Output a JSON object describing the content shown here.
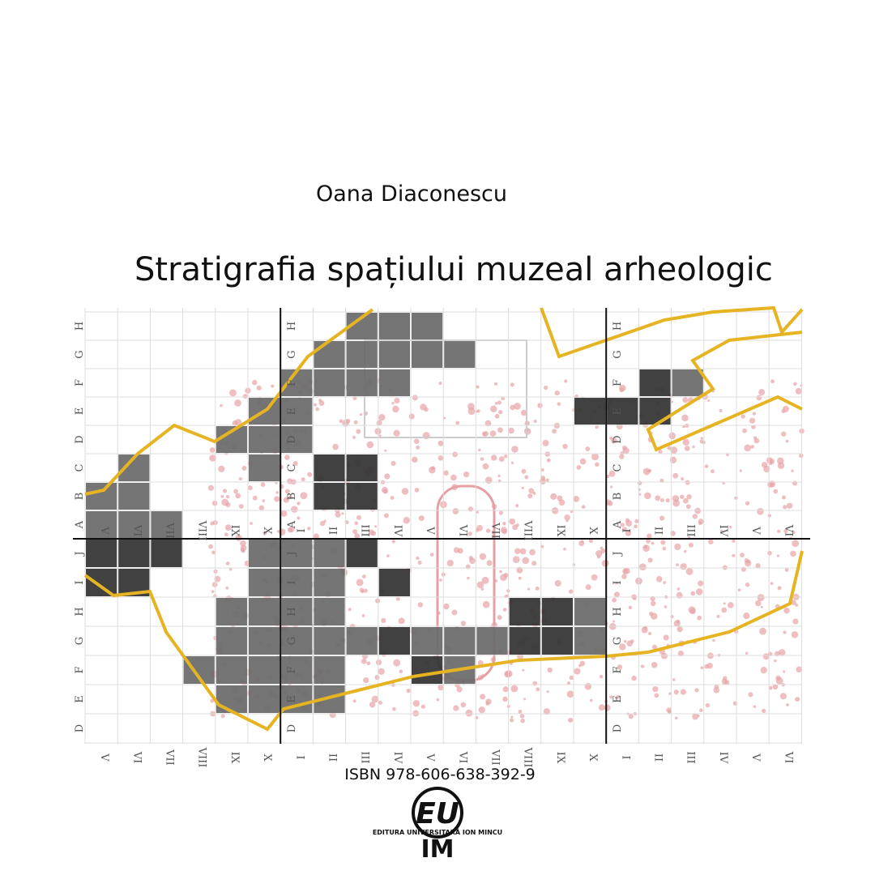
{
  "author": "Oana Diaconescu",
  "title": "Stratigrafia spațiului muzeal arheologic",
  "grid": {
    "columns": [
      "V",
      "VI",
      "VII",
      "VIII",
      "IX",
      "X",
      "I",
      "II",
      "III",
      "IV",
      "V",
      "VI",
      "VII",
      "VIII",
      "IX",
      "X",
      "I",
      "II",
      "III",
      "IV",
      "V",
      "VI"
    ],
    "rows_upper": [
      "A",
      "B",
      "C",
      "D",
      "E",
      "F",
      "G",
      "H"
    ],
    "rows_lower": [
      "J",
      "I",
      "H",
      "G",
      "F",
      "E",
      "D"
    ]
  },
  "isbn": "ISBN 978-606-638-392-9",
  "publisher": {
    "mark_top": "EU",
    "name": "EDITURA UNIVERSITARĂ ION MINCU",
    "mark_bottom": "IM"
  }
}
